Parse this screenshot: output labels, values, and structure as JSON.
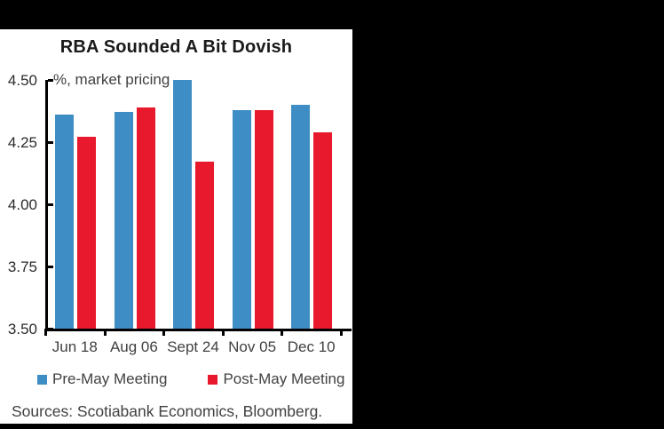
{
  "window": {
    "background": "#000000",
    "panel_background": "#ffffff"
  },
  "chart_data": {
    "type": "bar",
    "title": "RBA Sounded A Bit Dovish",
    "subtitle": "%, market pricing",
    "categories": [
      "Jun 18",
      "Aug 06",
      "Sept 24",
      "Nov 05",
      "Dec 10"
    ],
    "series": [
      {
        "name": "Pre-May Meeting",
        "color": "#3E8EC5",
        "values": [
          4.36,
          4.37,
          4.5,
          4.38,
          4.4
        ]
      },
      {
        "name": "Post-May Meeting",
        "color": "#E8192C",
        "values": [
          4.27,
          4.39,
          4.17,
          4.38,
          4.29
        ]
      }
    ],
    "ylim": [
      3.5,
      4.5
    ],
    "ytick_labels": [
      "4.50",
      "4.25",
      "4.00",
      "3.75",
      "3.50"
    ],
    "grid": false,
    "legend_position": "bottom",
    "axis_color": "#000000",
    "label_color": "#414042"
  },
  "footer": {
    "sources": "Sources: Scotiabank Economics, Bloomberg."
  }
}
